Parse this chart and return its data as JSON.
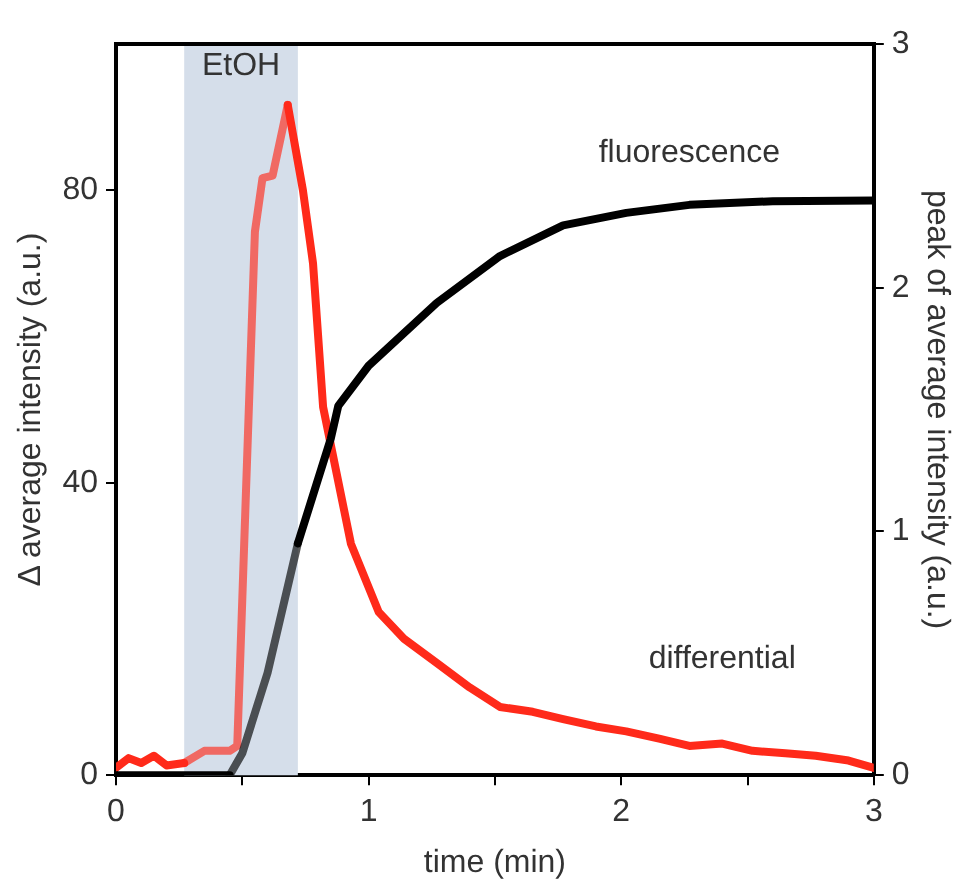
{
  "chart_data": {
    "type": "line",
    "xlabel": "time (min)",
    "ylabel": "Δ average intensity (a.u.)",
    "y2label": "peak of average intensity (a.u.)",
    "xlim": [
      0,
      3
    ],
    "xticks": [
      0,
      {
        "value": 0.5,
        "label": null
      },
      1,
      {
        "value": 1.5,
        "label": null
      },
      2,
      {
        "value": 2.5,
        "label": null
      },
      3
    ],
    "ylim": [
      0,
      100
    ],
    "yticks": [
      0,
      40,
      80
    ],
    "y2lim": [
      0,
      3
    ],
    "y2ticks": [
      0,
      1,
      2,
      3
    ],
    "grid": false,
    "legend": false,
    "marker": "none",
    "line_style": "solid",
    "bands": [
      {
        "axis": "x",
        "from": 0.27,
        "to": 0.72,
        "label": "EtOH",
        "color": "#d5deea"
      }
    ],
    "series": [
      {
        "name": "fluorescence",
        "color": "#000000",
        "x": [
          0,
          0.2,
          0.45,
          0.5,
          0.6,
          0.72,
          0.85,
          0.88,
          1.0,
          1.27,
          1.52,
          1.77,
          2.02,
          2.27,
          2.6,
          3.0
        ],
        "values": [
          0,
          0,
          0,
          3,
          14,
          31.7,
          46,
          50.5,
          56,
          64.6,
          71,
          75.2,
          76.9,
          78,
          78.5,
          78.6
        ]
      },
      {
        "name": "differential",
        "color": "#ff2a1a",
        "axis": "y2",
        "x": [
          0,
          0.05,
          0.1,
          0.15,
          0.2,
          0.27,
          0.35,
          0.45,
          0.48,
          0.55,
          0.58,
          0.62,
          0.68,
          0.74,
          0.78,
          0.82,
          0.93,
          1.04,
          1.14,
          1.27,
          1.4,
          1.52,
          1.65,
          1.77,
          1.9,
          2.02,
          2.15,
          2.27,
          2.4,
          2.52,
          2.65,
          2.77,
          2.9,
          3.0
        ],
        "values": [
          0.03,
          0.07,
          0.05,
          0.08,
          0.04,
          0.05,
          0.1,
          0.1,
          0.12,
          2.23,
          2.45,
          2.46,
          2.75,
          2.4,
          2.1,
          1.51,
          0.95,
          0.67,
          0.56,
          0.46,
          0.36,
          0.28,
          0.26,
          0.23,
          0.2,
          0.18,
          0.15,
          0.12,
          0.13,
          0.1,
          0.09,
          0.08,
          0.06,
          0.03
        ]
      }
    ]
  }
}
